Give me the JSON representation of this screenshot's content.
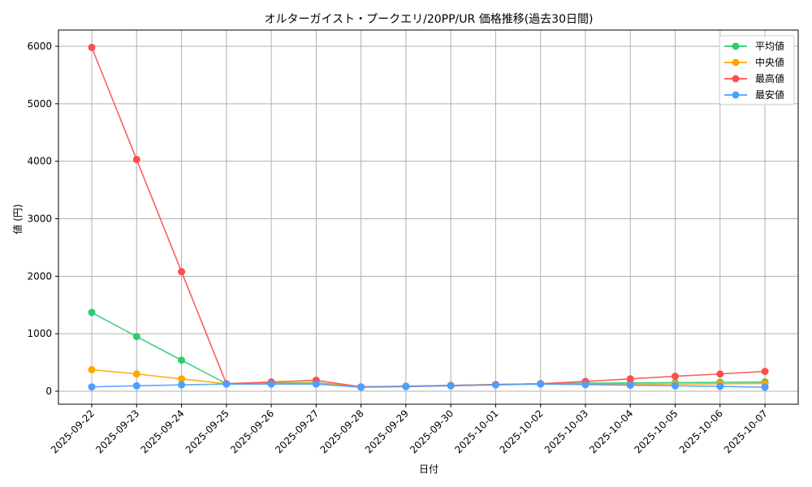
{
  "chart_data": {
    "type": "line",
    "title": "オルターガイスト・プークエリ/20PP/UR 価格推移(過去30日間)",
    "xlabel": "日付",
    "ylabel": "値 (円)",
    "ylim": [
      -220,
      6250
    ],
    "yticks": [
      0,
      1000,
      2000,
      3000,
      4000,
      5000,
      6000
    ],
    "grid": true,
    "legend_position": "upper right",
    "categories": [
      "2025-09-22",
      "2025-09-23",
      "2025-09-24",
      "2025-09-25",
      "2025-09-26",
      "2025-09-27",
      "2025-09-28",
      "2025-09-29",
      "2025-09-30",
      "2025-10-01",
      "2025-10-02",
      "2025-10-03",
      "2025-10-04",
      "2025-10-05",
      "2025-10-06",
      "2025-10-07"
    ],
    "series": [
      {
        "name": "平均値",
        "color": "#2ecc71",
        "values": [
          1370,
          950,
          540,
          130,
          140,
          150,
          75,
          85,
          100,
          115,
          130,
          140,
          145,
          150,
          155,
          160
        ]
      },
      {
        "name": "中央値",
        "color": "#ffa500",
        "values": [
          375,
          300,
          215,
          130,
          135,
          140,
          75,
          85,
          100,
          115,
          130,
          125,
          125,
          125,
          130,
          135
        ]
      },
      {
        "name": "最高値",
        "color": "#ff4d4d",
        "values": [
          5980,
          4030,
          2080,
          130,
          160,
          190,
          75,
          85,
          100,
          115,
          130,
          170,
          215,
          260,
          300,
          345
        ]
      },
      {
        "name": "最安値",
        "color": "#4d9eff",
        "values": [
          75,
          95,
          110,
          125,
          125,
          125,
          70,
          80,
          95,
          110,
          125,
          115,
          105,
          95,
          85,
          70
        ]
      }
    ]
  }
}
